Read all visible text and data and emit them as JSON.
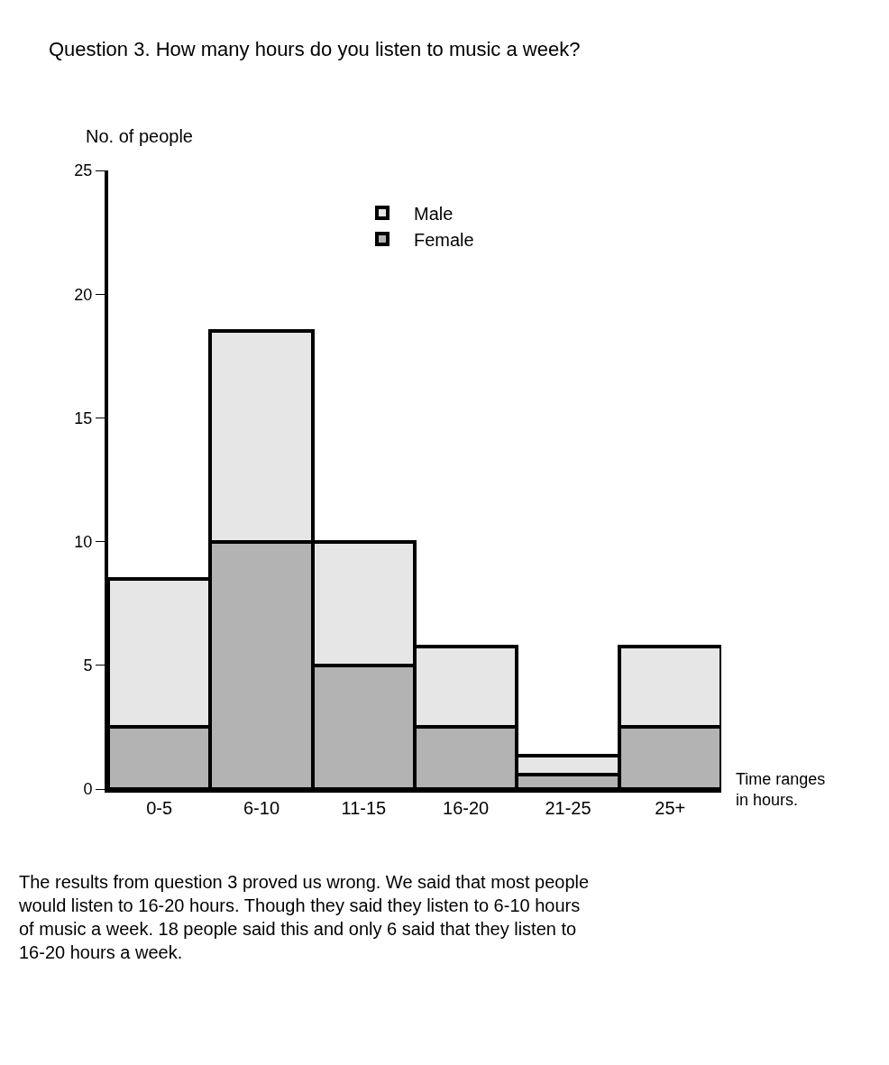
{
  "chart_data": {
    "type": "bar",
    "stacked": true,
    "title": "Question 3. How many hours do you listen to music a week?",
    "ylabel": "No. of people",
    "xlabel": "Time ranges in hours.",
    "categories": [
      "0-5",
      "6-10",
      "11-15",
      "16-20",
      "21-25",
      "25+"
    ],
    "series": [
      {
        "name": "Female",
        "color": "#b3b3b3",
        "values": [
          2.5,
          10,
          5,
          2.5,
          0.6,
          2.5
        ]
      },
      {
        "name": "Male",
        "color": "#e6e6e6",
        "values": [
          6,
          8.5,
          5,
          3.25,
          0.75,
          3.25
        ]
      }
    ],
    "ylim": [
      0,
      25
    ],
    "yticks": [
      0,
      5,
      10,
      15,
      20,
      25
    ],
    "grid": false,
    "legend": "top",
    "annotations": [
      "The results from question 3 proved us wrong. We said that most people would listen to 16-20 hours. Though they said they listen to 6-10 hours of music a week. 18 people said this and only 6 said that they listen to 16-20 hours a week."
    ]
  }
}
